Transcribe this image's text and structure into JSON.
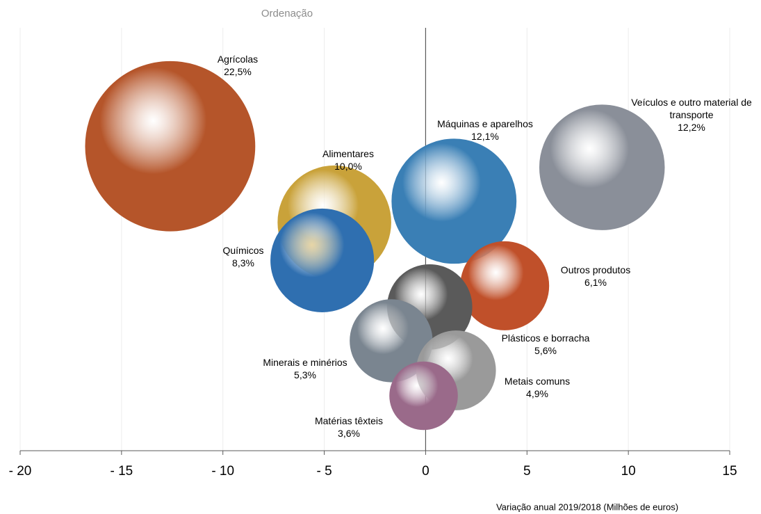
{
  "chart_data": {
    "type": "bubble",
    "title": "Ordenação",
    "x_label": "Variação anual 2019/2018 (Milhões de euros)",
    "categories": [
      "Agrícolas",
      "Veículos e outro material de transporte",
      "Máquinas e aparelhos",
      "Alimentares",
      "Químicos",
      "Outros produtos",
      "Plásticos e borracha",
      "Minerais e minérios",
      "Metais comuns",
      "Matérias têxteis"
    ],
    "x": [
      -12.6,
      8.7,
      1.4,
      -4.5,
      -5.1,
      3.9,
      0.2,
      -1.7,
      1.5,
      -0.1
    ],
    "y": [
      72,
      67,
      59,
      54,
      45,
      39,
      34,
      26,
      19,
      13
    ],
    "values": [
      22.5,
      12.2,
      12.1,
      10.0,
      8.3,
      6.1,
      5.6,
      5.3,
      4.9,
      3.6
    ],
    "value_labels": [
      "22,5%",
      "12,2%",
      "12,1%",
      "10,0%",
      "8,3%",
      "6,1%",
      "5,6%",
      "5,3%",
      "4,9%",
      "3,6%"
    ],
    "colors": [
      "#b5552a",
      "#8a8f99",
      "#3a7fb5",
      "#c9a23a",
      "#2f6fb0",
      "#c0502a",
      "#5a5a5a",
      "#7a8590",
      "#9a9a9a",
      "#9a6a8a"
    ],
    "xlim": [
      -20,
      15
    ],
    "xticks": [
      {
        "value": -20,
        "label": "- 20"
      },
      {
        "value": -15,
        "label": "- 15"
      },
      {
        "value": -10,
        "label": "- 10"
      },
      {
        "value": -5,
        "label": "- 5"
      },
      0,
      5,
      10,
      15
    ],
    "ylim": [
      0,
      100
    ],
    "grid": true
  }
}
